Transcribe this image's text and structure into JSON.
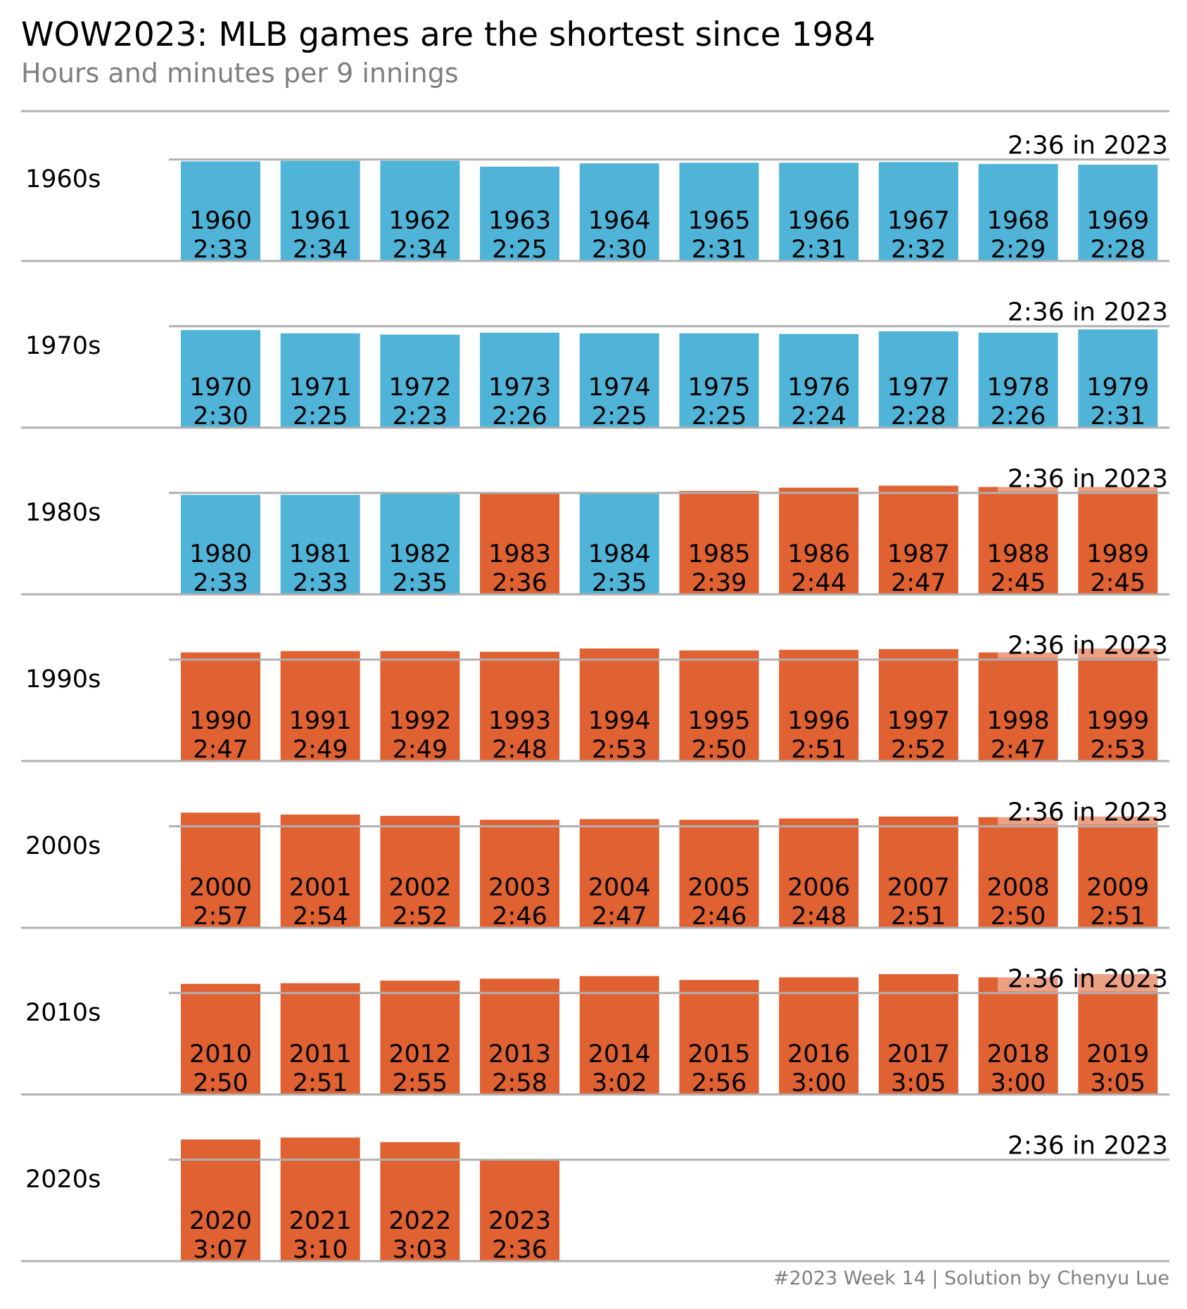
{
  "title": "WOW2023: MLB games are the shortest since 1984",
  "subtitle": "Hours and minutes per 9 innings",
  "footer": "#2023 Week 14 | Solution by Chenyu Lue",
  "chart_data": {
    "type": "bar",
    "reference": {
      "value": "2:36",
      "label": "2:36 in 2023"
    },
    "colors": {
      "shorter": "#50b4d8",
      "longer": "#e06132",
      "axis": "#b0b0b0"
    },
    "rows": [
      {
        "label": "1960s",
        "bars": [
          {
            "year": "1960",
            "time": "2:33"
          },
          {
            "year": "1961",
            "time": "2:34"
          },
          {
            "year": "1962",
            "time": "2:34"
          },
          {
            "year": "1963",
            "time": "2:25"
          },
          {
            "year": "1964",
            "time": "2:30"
          },
          {
            "year": "1965",
            "time": "2:31"
          },
          {
            "year": "1966",
            "time": "2:31"
          },
          {
            "year": "1967",
            "time": "2:32"
          },
          {
            "year": "1968",
            "time": "2:29"
          },
          {
            "year": "1969",
            "time": "2:28"
          }
        ]
      },
      {
        "label": "1970s",
        "bars": [
          {
            "year": "1970",
            "time": "2:30"
          },
          {
            "year": "1971",
            "time": "2:25"
          },
          {
            "year": "1972",
            "time": "2:23"
          },
          {
            "year": "1973",
            "time": "2:26"
          },
          {
            "year": "1974",
            "time": "2:25"
          },
          {
            "year": "1975",
            "time": "2:25"
          },
          {
            "year": "1976",
            "time": "2:24"
          },
          {
            "year": "1977",
            "time": "2:28"
          },
          {
            "year": "1978",
            "time": "2:26"
          },
          {
            "year": "1979",
            "time": "2:31"
          }
        ]
      },
      {
        "label": "1980s",
        "bars": [
          {
            "year": "1980",
            "time": "2:33"
          },
          {
            "year": "1981",
            "time": "2:33"
          },
          {
            "year": "1982",
            "time": "2:35"
          },
          {
            "year": "1983",
            "time": "2:36"
          },
          {
            "year": "1984",
            "time": "2:35"
          },
          {
            "year": "1985",
            "time": "2:39"
          },
          {
            "year": "1986",
            "time": "2:44"
          },
          {
            "year": "1987",
            "time": "2:47"
          },
          {
            "year": "1988",
            "time": "2:45"
          },
          {
            "year": "1989",
            "time": "2:45"
          }
        ]
      },
      {
        "label": "1990s",
        "bars": [
          {
            "year": "1990",
            "time": "2:47"
          },
          {
            "year": "1991",
            "time": "2:49"
          },
          {
            "year": "1992",
            "time": "2:49"
          },
          {
            "year": "1993",
            "time": "2:48"
          },
          {
            "year": "1994",
            "time": "2:53"
          },
          {
            "year": "1995",
            "time": "2:50"
          },
          {
            "year": "1996",
            "time": "2:51"
          },
          {
            "year": "1997",
            "time": "2:52"
          },
          {
            "year": "1998",
            "time": "2:47"
          },
          {
            "year": "1999",
            "time": "2:53"
          }
        ]
      },
      {
        "label": "2000s",
        "bars": [
          {
            "year": "2000",
            "time": "2:57"
          },
          {
            "year": "2001",
            "time": "2:54"
          },
          {
            "year": "2002",
            "time": "2:52"
          },
          {
            "year": "2003",
            "time": "2:46"
          },
          {
            "year": "2004",
            "time": "2:47"
          },
          {
            "year": "2005",
            "time": "2:46"
          },
          {
            "year": "2006",
            "time": "2:48"
          },
          {
            "year": "2007",
            "time": "2:51"
          },
          {
            "year": "2008",
            "time": "2:50"
          },
          {
            "year": "2009",
            "time": "2:51"
          }
        ]
      },
      {
        "label": "2010s",
        "bars": [
          {
            "year": "2010",
            "time": "2:50"
          },
          {
            "year": "2011",
            "time": "2:51"
          },
          {
            "year": "2012",
            "time": "2:55"
          },
          {
            "year": "2013",
            "time": "2:58"
          },
          {
            "year": "2014",
            "time": "3:02"
          },
          {
            "year": "2015",
            "time": "2:56"
          },
          {
            "year": "2016",
            "time": "3:00"
          },
          {
            "year": "2017",
            "time": "3:05"
          },
          {
            "year": "2018",
            "time": "3:00"
          },
          {
            "year": "2019",
            "time": "3:05"
          }
        ]
      },
      {
        "label": "2020s",
        "bars": [
          {
            "year": "2020",
            "time": "3:07"
          },
          {
            "year": "2021",
            "time": "3:10"
          },
          {
            "year": "2022",
            "time": "3:03"
          },
          {
            "year": "2023",
            "time": "2:36"
          }
        ]
      }
    ]
  }
}
